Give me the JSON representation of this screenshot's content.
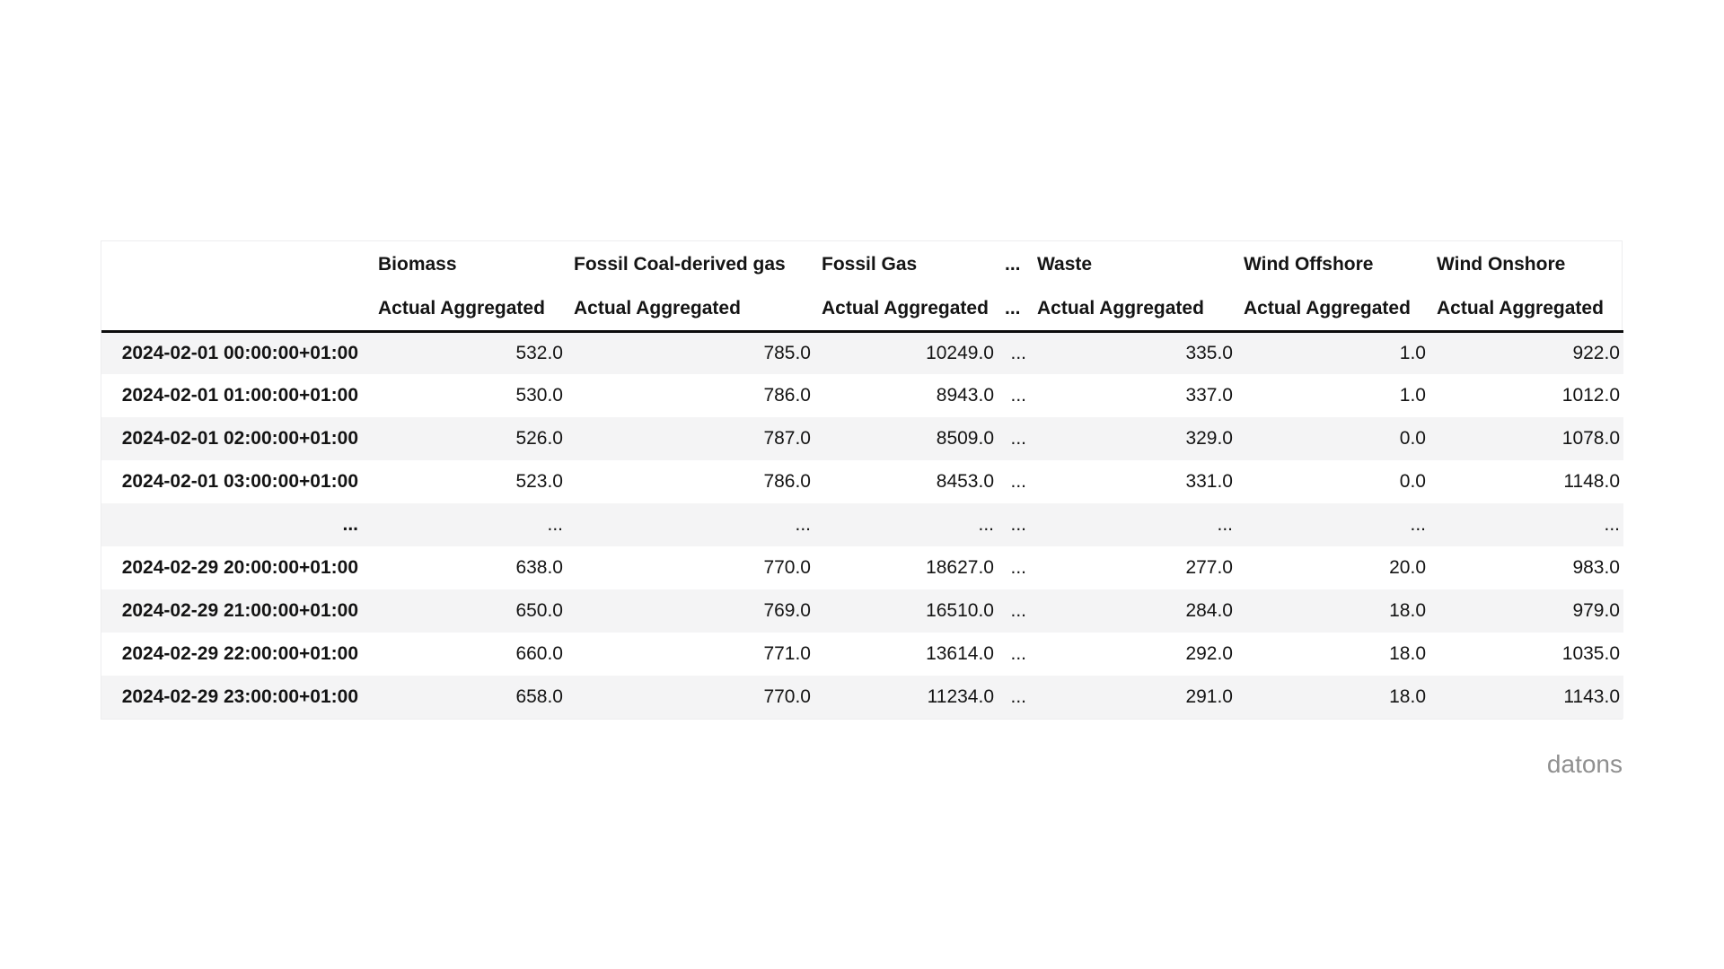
{
  "watermark": "datons",
  "colors": {
    "row_alt_background": "#f4f4f5",
    "header_separator": "#0c0c0c",
    "table_border": "#ededef",
    "watermark_text": "#8f8f8f",
    "text": "#141414"
  },
  "table": {
    "index_header": "",
    "columns": [
      {
        "label": "Biomass",
        "sub": "Actual Aggregated"
      },
      {
        "label": "Fossil Coal-derived gas",
        "sub": "Actual Aggregated"
      },
      {
        "label": "Fossil Gas",
        "sub": "Actual Aggregated"
      },
      {
        "label": "...",
        "sub": "..."
      },
      {
        "label": "Waste",
        "sub": "Actual Aggregated"
      },
      {
        "label": "Wind Offshore",
        "sub": "Actual Aggregated"
      },
      {
        "label": "Wind Onshore",
        "sub": "Actual Aggregated"
      }
    ],
    "rows": [
      {
        "index": "2024-02-01 00:00:00+01:00",
        "values": [
          "532.0",
          "785.0",
          "10249.0",
          "...",
          "335.0",
          "1.0",
          "922.0"
        ]
      },
      {
        "index": "2024-02-01 01:00:00+01:00",
        "values": [
          "530.0",
          "786.0",
          "8943.0",
          "...",
          "337.0",
          "1.0",
          "1012.0"
        ]
      },
      {
        "index": "2024-02-01 02:00:00+01:00",
        "values": [
          "526.0",
          "787.0",
          "8509.0",
          "...",
          "329.0",
          "0.0",
          "1078.0"
        ]
      },
      {
        "index": "2024-02-01 03:00:00+01:00",
        "values": [
          "523.0",
          "786.0",
          "8453.0",
          "...",
          "331.0",
          "0.0",
          "1148.0"
        ]
      },
      {
        "index": "...",
        "values": [
          "...",
          "...",
          "...",
          "...",
          "...",
          "...",
          "..."
        ]
      },
      {
        "index": "2024-02-29 20:00:00+01:00",
        "values": [
          "638.0",
          "770.0",
          "18627.0",
          "...",
          "277.0",
          "20.0",
          "983.0"
        ]
      },
      {
        "index": "2024-02-29 21:00:00+01:00",
        "values": [
          "650.0",
          "769.0",
          "16510.0",
          "...",
          "284.0",
          "18.0",
          "979.0"
        ]
      },
      {
        "index": "2024-02-29 22:00:00+01:00",
        "values": [
          "660.0",
          "771.0",
          "13614.0",
          "...",
          "292.0",
          "18.0",
          "1035.0"
        ]
      },
      {
        "index": "2024-02-29 23:00:00+01:00",
        "values": [
          "658.0",
          "770.0",
          "11234.0",
          "...",
          "291.0",
          "18.0",
          "1143.0"
        ]
      }
    ]
  },
  "chart_data": {
    "type": "table",
    "title": "",
    "column_labels": [
      "Biomass",
      "Fossil Coal-derived gas",
      "Fossil Gas",
      "...",
      "Waste",
      "Wind Offshore",
      "Wind Onshore"
    ],
    "column_sublabels": [
      "Actual Aggregated",
      "Actual Aggregated",
      "Actual Aggregated",
      "...",
      "Actual Aggregated",
      "Actual Aggregated",
      "Actual Aggregated"
    ],
    "index": [
      "2024-02-01 00:00:00+01:00",
      "2024-02-01 01:00:00+01:00",
      "2024-02-01 02:00:00+01:00",
      "2024-02-01 03:00:00+01:00",
      "...",
      "2024-02-29 20:00:00+01:00",
      "2024-02-29 21:00:00+01:00",
      "2024-02-29 22:00:00+01:00",
      "2024-02-29 23:00:00+01:00"
    ],
    "rows": [
      [
        532.0,
        785.0,
        10249.0,
        "...",
        335.0,
        1.0,
        922.0
      ],
      [
        530.0,
        786.0,
        8943.0,
        "...",
        337.0,
        1.0,
        1012.0
      ],
      [
        526.0,
        787.0,
        8509.0,
        "...",
        329.0,
        0.0,
        1078.0
      ],
      [
        523.0,
        786.0,
        8453.0,
        "...",
        331.0,
        0.0,
        1148.0
      ],
      [
        "...",
        "...",
        "...",
        "...",
        "...",
        "...",
        "..."
      ],
      [
        638.0,
        770.0,
        18627.0,
        "...",
        277.0,
        20.0,
        983.0
      ],
      [
        650.0,
        769.0,
        16510.0,
        "...",
        284.0,
        18.0,
        979.0
      ],
      [
        660.0,
        771.0,
        13614.0,
        "...",
        292.0,
        18.0,
        1035.0
      ],
      [
        658.0,
        770.0,
        11234.0,
        "...",
        291.0,
        18.0,
        1143.0
      ]
    ],
    "notes": "Column 4 is a pandas display-truncation ellipsis column; row 5 is a truncation ellipsis row."
  }
}
